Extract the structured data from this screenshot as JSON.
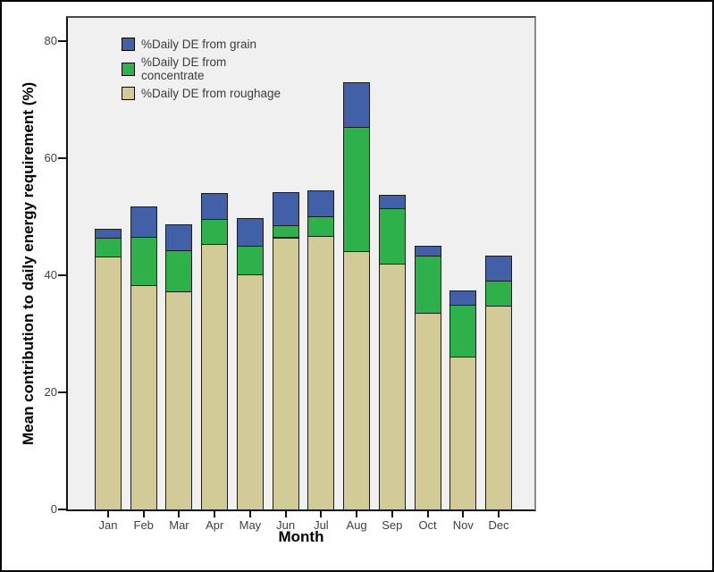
{
  "chart_data": {
    "type": "bar",
    "stacked": true,
    "title": "",
    "xlabel": "Month",
    "ylabel": "Mean contribution to daily energy requirement (%)",
    "categories": [
      "Jan",
      "Feb",
      "Mar",
      "Apr",
      "May",
      "Jun",
      "Jul",
      "Aug",
      "Sep",
      "Oct",
      "Nov",
      "Dec"
    ],
    "series": [
      {
        "name": "%Daily DE from grain",
        "legend_label": "%Daily DE from grain",
        "color": "#4160a8",
        "values": [
          1.5,
          5.2,
          4.4,
          4.4,
          4.7,
          5.7,
          4.5,
          7.6,
          2.3,
          1.7,
          2.4,
          4.2
        ]
      },
      {
        "name": "%Daily DE from concentrate",
        "legend_label": "%Daily DE from\nconcentrate",
        "color": "#2eb14b",
        "values": [
          3.2,
          8.2,
          7.1,
          4.3,
          4.9,
          2.0,
          3.3,
          21.3,
          9.4,
          9.7,
          8.8,
          4.3
        ]
      },
      {
        "name": "%Daily DE from roughage",
        "legend_label": "%Daily DE from roughage",
        "color": "#d3cb97",
        "values": [
          43.3,
          38.4,
          37.2,
          45.4,
          40.2,
          46.5,
          46.8,
          44.1,
          42.0,
          33.6,
          26.2,
          34.8
        ]
      }
    ],
    "stack_order_bottom_to_top": [
      "%Daily DE from roughage",
      "%Daily DE from concentrate",
      "%Daily DE from grain"
    ],
    "totals": [
      48.0,
      51.8,
      48.7,
      54.1,
      49.8,
      54.2,
      54.6,
      73.0,
      53.7,
      45.0,
      37.4,
      43.3
    ],
    "ylim": [
      0,
      84
    ],
    "yticks": [
      0,
      20,
      40,
      60,
      80
    ],
    "grid": false,
    "legend_position": "upper-left-inside",
    "plot_background": "#f0f0f0",
    "bar_border_color": "#1c1c1c"
  }
}
